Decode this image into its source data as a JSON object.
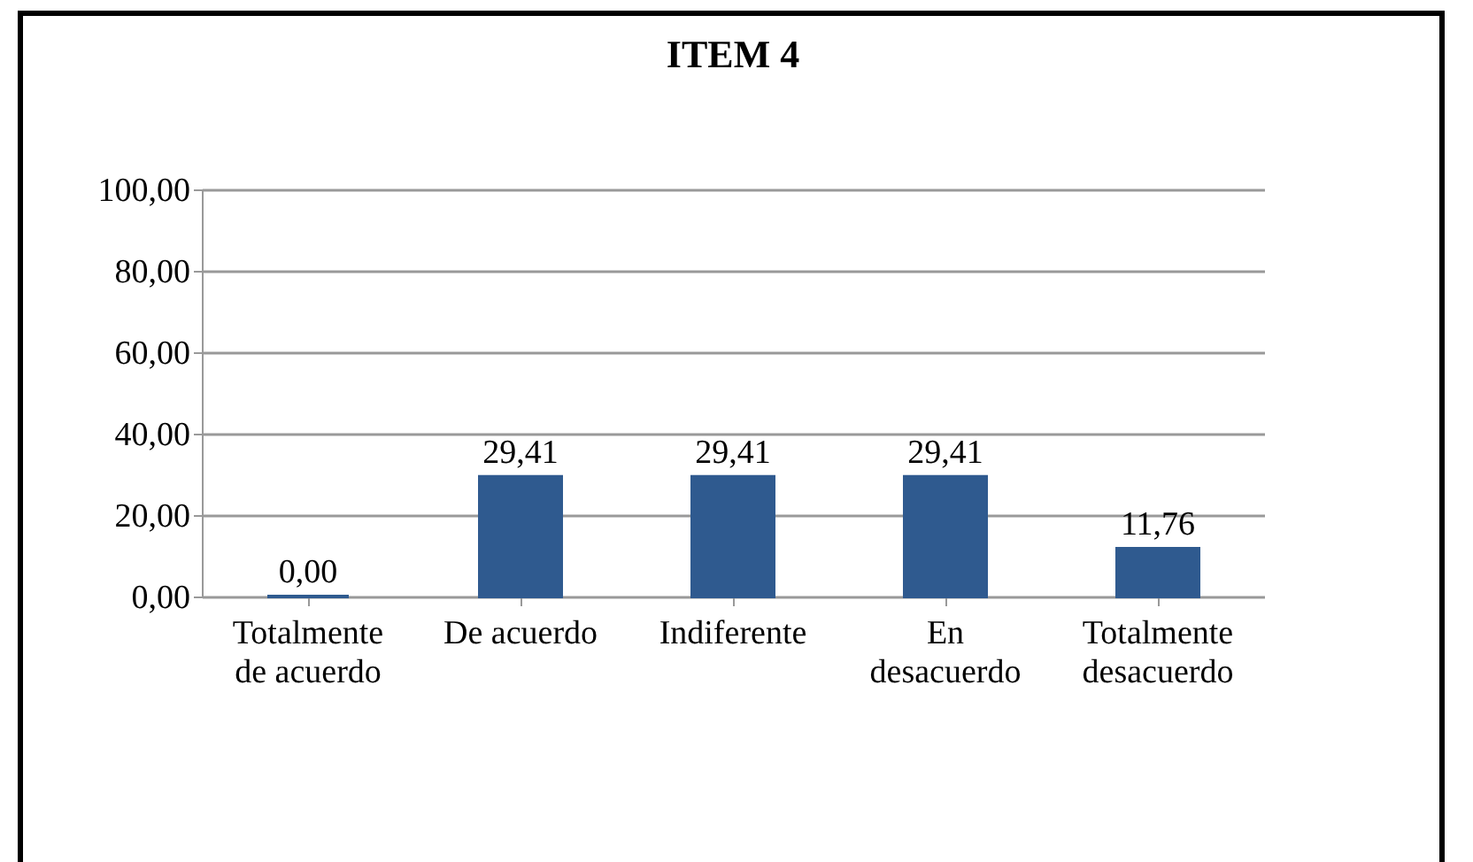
{
  "chart_data": {
    "type": "bar",
    "title": "ITEM 4",
    "categories": [
      "Totalmente de acuerdo",
      "De acuerdo",
      "Indiferente",
      "En desacuerdo",
      "Totalmente desacuerdo"
    ],
    "values": [
      0.0,
      29.41,
      29.41,
      29.41,
      11.76
    ],
    "value_labels": [
      "0,00",
      "29,41",
      "29,41",
      "29,41",
      "11,76"
    ],
    "color": "#2f5a8f",
    "ylim": [
      0,
      100
    ],
    "yticks": [
      {
        "value": 0,
        "label": "0,00"
      },
      {
        "value": 20,
        "label": "20,00"
      },
      {
        "value": 40,
        "label": "40,00"
      },
      {
        "value": 60,
        "label": "60,00"
      },
      {
        "value": 80,
        "label": "80,00"
      },
      {
        "value": 100,
        "label": "100,00"
      }
    ],
    "grid": true
  }
}
